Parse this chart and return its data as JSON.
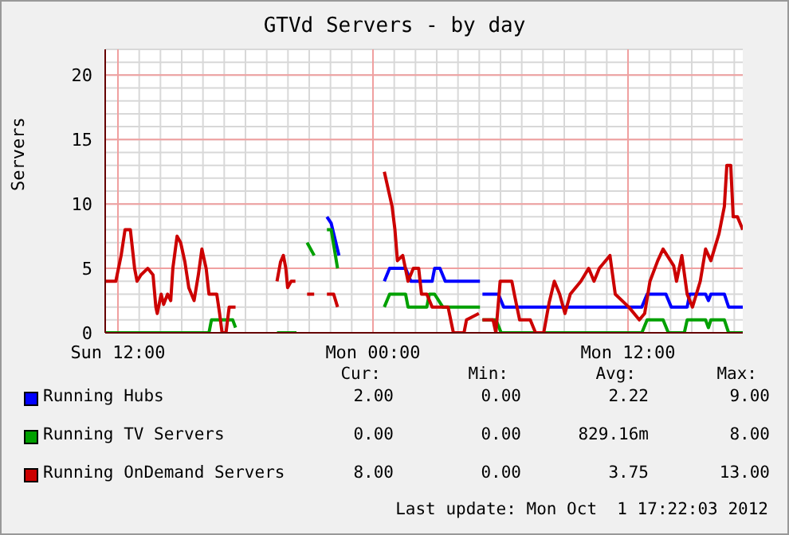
{
  "chart_data": {
    "type": "line",
    "title": "GTVd Servers - by day",
    "ylabel": "Servers",
    "xlim": [
      "2012-09-30T11:24",
      "2012-10-01T17:24"
    ],
    "xticks": [
      {
        "value": "2012-09-30T12:00",
        "label": "Sun 12:00"
      },
      {
        "value": "2012-09-30T13:00",
        "label": null
      },
      {
        "value": "2012-09-30T14:00",
        "label": null
      },
      {
        "value": "2012-09-30T15:00",
        "label": null
      },
      {
        "value": "2012-09-30T16:00",
        "label": null
      },
      {
        "value": "2012-09-30T17:00",
        "label": null
      },
      {
        "value": "2012-09-30T18:00",
        "label": null
      },
      {
        "value": "2012-09-30T19:00",
        "label": null
      },
      {
        "value": "2012-09-30T20:00",
        "label": null
      },
      {
        "value": "2012-09-30T21:00",
        "label": null
      },
      {
        "value": "2012-09-30T22:00",
        "label": null
      },
      {
        "value": "2012-09-30T23:00",
        "label": null
      },
      {
        "value": "2012-10-01T00:00",
        "label": "Mon 00:00"
      },
      {
        "value": "2012-10-01T01:00",
        "label": null
      },
      {
        "value": "2012-10-01T02:00",
        "label": null
      },
      {
        "value": "2012-10-01T03:00",
        "label": null
      },
      {
        "value": "2012-10-01T04:00",
        "label": null
      },
      {
        "value": "2012-10-01T05:00",
        "label": null
      },
      {
        "value": "2012-10-01T06:00",
        "label": null
      },
      {
        "value": "2012-10-01T07:00",
        "label": null
      },
      {
        "value": "2012-10-01T08:00",
        "label": null
      },
      {
        "value": "2012-10-01T09:00",
        "label": null
      },
      {
        "value": "2012-10-01T10:00",
        "label": null
      },
      {
        "value": "2012-10-01T11:00",
        "label": null
      },
      {
        "value": "2012-10-01T12:00",
        "label": "Mon 12:00"
      },
      {
        "value": "2012-10-01T13:00",
        "label": null
      },
      {
        "value": "2012-10-01T14:00",
        "label": null
      },
      {
        "value": "2012-10-01T15:00",
        "label": null
      },
      {
        "value": "2012-10-01T16:00",
        "label": null
      },
      {
        "value": "2012-10-01T17:00",
        "label": null
      }
    ],
    "ylim": [
      0,
      22
    ],
    "yticks": [
      0,
      {
        "value": 1,
        "label": null
      },
      {
        "value": 2,
        "label": null
      },
      {
        "value": 3,
        "label": null
      },
      {
        "value": 4,
        "label": null
      },
      5,
      {
        "value": 6,
        "label": null
      },
      {
        "value": 7,
        "label": null
      },
      {
        "value": 8,
        "label": null
      },
      {
        "value": 9,
        "label": null
      },
      10,
      {
        "value": 11,
        "label": null
      },
      {
        "value": 12,
        "label": null
      },
      {
        "value": 13,
        "label": null
      },
      {
        "value": 14,
        "label": null
      },
      15,
      {
        "value": 16,
        "label": null
      },
      {
        "value": 17,
        "label": null
      },
      {
        "value": 18,
        "label": null
      },
      {
        "value": 19,
        "label": null
      },
      20,
      {
        "value": 21,
        "label": null
      },
      {
        "value": 22,
        "label": null
      }
    ],
    "grid": true,
    "legend": "bottom",
    "marker": "none",
    "line_style": "solid",
    "series": [
      {
        "name": "Running Hubs",
        "color": "#0000ff",
        "x": [
          "2012-09-30T21:50",
          "2012-09-30T22:02",
          "2012-09-30T22:24",
          "2012-09-30T23:30",
          "2012-10-01T00:32",
          "2012-10-01T00:47",
          "2012-10-01T01:32",
          "2012-10-01T01:47",
          "2012-10-01T02:47",
          "2012-10-01T02:54",
          "2012-10-01T03:09",
          "2012-10-01T03:24",
          "2012-10-01T05:02",
          "2012-10-01T05:05",
          "2012-10-01T05:09",
          "2012-10-01T05:54",
          "2012-10-01T06:09",
          "2012-10-01T12:39",
          "2012-10-01T12:54",
          "2012-10-01T13:47",
          "2012-10-01T14:02",
          "2012-10-01T14:47",
          "2012-10-01T14:54",
          "2012-10-01T15:39",
          "2012-10-01T15:47",
          "2012-10-01T15:54",
          "2012-10-01T16:32",
          "2012-10-01T16:44",
          "2012-10-01T17:24"
        ],
        "values": [
          9,
          8.5,
          6,
          null,
          4,
          5,
          5,
          4,
          4,
          5,
          5,
          4,
          4,
          null,
          3,
          3,
          2,
          2,
          3,
          3,
          2,
          2,
          3,
          3,
          2.5,
          3,
          3,
          2,
          2
        ]
      },
      {
        "name": "Running TV Servers",
        "color": "#00a000",
        "x": [
          "2012-09-30T11:24",
          "2012-09-30T16:17",
          "2012-09-30T16:24",
          "2012-09-30T17:24",
          "2012-09-30T17:32",
          "2012-09-30T18:30",
          "2012-09-30T19:29",
          "2012-09-30T20:24",
          "2012-09-30T20:36",
          "2012-09-30T20:54",
          "2012-09-30T21:14",
          "2012-09-30T21:30",
          "2012-09-30T21:50",
          "2012-09-30T22:02",
          "2012-09-30T22:20",
          "2012-09-30T23:30",
          "2012-10-01T00:32",
          "2012-10-01T00:47",
          "2012-10-01T01:32",
          "2012-10-01T01:39",
          "2012-10-01T02:32",
          "2012-10-01T02:39",
          "2012-10-01T02:54",
          "2012-10-01T03:17",
          "2012-10-01T05:02",
          "2012-10-01T05:05",
          "2012-10-01T05:09",
          "2012-10-01T05:47",
          "2012-10-01T06:02",
          "2012-10-01T12:39",
          "2012-10-01T12:54",
          "2012-10-01T13:39",
          "2012-10-01T13:54",
          "2012-10-01T14:39",
          "2012-10-01T14:47",
          "2012-10-01T15:39",
          "2012-10-01T15:47",
          "2012-10-01T15:54",
          "2012-10-01T16:32",
          "2012-10-01T16:44",
          "2012-10-01T17:24"
        ],
        "values": [
          0,
          0,
          1,
          1,
          0.4,
          null,
          0,
          0,
          null,
          7,
          6,
          null,
          8,
          8,
          5,
          null,
          2,
          3,
          3,
          2,
          2,
          3,
          3,
          2,
          2,
          null,
          1,
          1,
          0,
          0,
          1,
          1,
          0,
          0,
          1,
          1,
          0.4,
          1,
          1,
          0,
          0
        ]
      },
      {
        "name": "Running OnDemand Servers",
        "color": "#cc0000",
        "x": [
          "2012-09-30T11:24",
          "2012-09-30T11:54",
          "2012-09-30T12:09",
          "2012-09-30T12:20",
          "2012-09-30T12:35",
          "2012-09-30T12:47",
          "2012-09-30T12:54",
          "2012-09-30T13:05",
          "2012-09-30T13:24",
          "2012-09-30T13:39",
          "2012-09-30T13:47",
          "2012-09-30T13:51",
          "2012-09-30T14:02",
          "2012-09-30T14:09",
          "2012-09-30T14:20",
          "2012-09-30T14:29",
          "2012-09-30T14:35",
          "2012-09-30T14:47",
          "2012-09-30T14:57",
          "2012-09-30T15:09",
          "2012-09-30T15:20",
          "2012-09-30T15:35",
          "2012-09-30T15:47",
          "2012-09-30T15:57",
          "2012-09-30T16:09",
          "2012-09-30T16:17",
          "2012-09-30T16:39",
          "2012-09-30T16:47",
          "2012-09-30T16:54",
          "2012-09-30T17:05",
          "2012-09-30T17:14",
          "2012-09-30T17:32",
          "2012-09-30T18:30",
          "2012-09-30T19:29",
          "2012-09-30T19:39",
          "2012-09-30T19:47",
          "2012-09-30T19:54",
          "2012-09-30T19:59",
          "2012-09-30T20:09",
          "2012-09-30T20:21",
          "2012-09-30T20:36",
          "2012-09-30T20:54",
          "2012-09-30T21:14",
          "2012-09-30T21:18",
          "2012-09-30T21:50",
          "2012-09-30T22:09",
          "2012-09-30T22:20",
          "2012-09-30T23:30",
          "2012-10-01T00:32",
          "2012-10-01T00:54",
          "2012-10-01T01:02",
          "2012-10-01T01:09",
          "2012-10-01T01:24",
          "2012-10-01T01:39",
          "2012-10-01T01:54",
          "2012-10-01T02:09",
          "2012-10-01T02:17",
          "2012-10-01T02:32",
          "2012-10-01T02:47",
          "2012-10-01T03:32",
          "2012-10-01T03:47",
          "2012-10-01T04:17",
          "2012-10-01T04:24",
          "2012-10-01T04:59",
          "2012-10-01T05:03",
          "2012-10-01T05:09",
          "2012-10-01T05:39",
          "2012-10-01T05:47",
          "2012-10-01T05:59",
          "2012-10-01T06:32",
          "2012-10-01T06:39",
          "2012-10-01T06:54",
          "2012-10-01T07:24",
          "2012-10-01T07:39",
          "2012-10-01T08:02",
          "2012-10-01T08:17",
          "2012-10-01T08:32",
          "2012-10-01T08:47",
          "2012-10-01T09:02",
          "2012-10-01T09:17",
          "2012-10-01T09:47",
          "2012-10-01T10:09",
          "2012-10-01T10:24",
          "2012-10-01T10:39",
          "2012-10-01T11:09",
          "2012-10-01T11:24",
          "2012-10-01T12:02",
          "2012-10-01T12:32",
          "2012-10-01T12:47",
          "2012-10-01T13:02",
          "2012-10-01T13:24",
          "2012-10-01T13:39",
          "2012-10-01T14:09",
          "2012-10-01T14:17",
          "2012-10-01T14:32",
          "2012-10-01T14:47",
          "2012-10-01T15:02",
          "2012-10-01T15:24",
          "2012-10-01T15:39",
          "2012-10-01T15:54",
          "2012-10-01T16:17",
          "2012-10-01T16:32",
          "2012-10-01T16:39",
          "2012-10-01T16:50",
          "2012-10-01T16:57",
          "2012-10-01T17:09",
          "2012-10-01T17:24"
        ],
        "values": [
          4,
          4,
          6,
          8,
          8,
          5,
          4,
          4.5,
          5,
          4.5,
          2,
          1.5,
          3,
          2.2,
          3,
          2.5,
          5,
          7.5,
          7,
          5.5,
          3.5,
          2.5,
          4.5,
          6.5,
          5,
          3,
          3,
          1.5,
          0,
          0,
          2,
          2,
          null,
          4,
          5.5,
          6,
          5,
          3.5,
          4,
          4,
          null,
          3,
          3,
          null,
          3,
          3,
          2,
          null,
          12.5,
          9.8,
          8,
          5.6,
          6,
          4,
          5,
          5,
          3,
          3,
          2,
          2,
          0,
          0,
          1,
          1.5,
          null,
          1,
          1,
          0,
          4,
          4,
          3,
          1,
          1,
          0,
          0,
          2.3,
          4,
          3,
          1.5,
          3,
          4,
          5,
          4,
          5,
          6,
          3,
          2,
          1,
          1.5,
          4,
          5.6,
          6.5,
          5.2,
          4,
          6,
          3,
          2,
          4,
          6.5,
          5.6,
          7.7,
          9.8,
          13,
          13,
          9,
          9,
          8
        ]
      }
    ],
    "annotations": [
      "Cur:",
      "Min:",
      "Avg:",
      "Max:",
      "2.00",
      "0.00",
      "2.22",
      "9.00",
      "0.00",
      "0.00",
      "829.16m",
      "8.00",
      "8.00",
      "0.00",
      "3.75",
      "13.00",
      "Last update: Mon Oct  1 17:22:03 2012"
    ]
  }
}
